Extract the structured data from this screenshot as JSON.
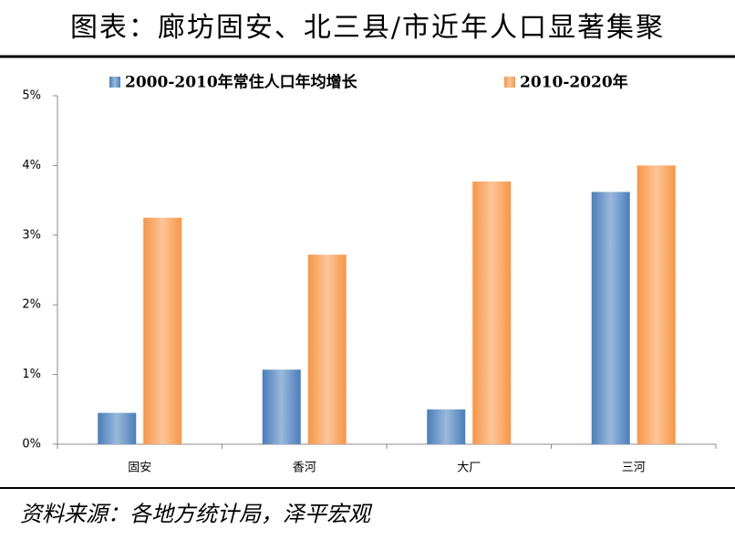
{
  "chart_data": {
    "type": "bar",
    "title": "图表：廊坊固安、北三县/市近年人口显著集聚",
    "source": "资料来源：各地方统计局，泽平宏观",
    "categories": [
      "固安",
      "香河",
      "大厂",
      "三河"
    ],
    "series": [
      {
        "name": "2000-2010年常住人口年均增长",
        "color": "#4a7ebb",
        "values": [
          0.45,
          1.07,
          0.5,
          3.62
        ]
      },
      {
        "name": "2010-2020年",
        "color": "#f79646",
        "values": [
          3.25,
          2.72,
          3.77,
          4.0
        ]
      }
    ],
    "ylim": [
      0,
      5
    ],
    "yticks": [
      {
        "value": 0,
        "label": "0%"
      },
      {
        "value": 1,
        "label": "1%"
      },
      {
        "value": 2,
        "label": "2%"
      },
      {
        "value": 3,
        "label": "3%"
      },
      {
        "value": 4,
        "label": "4%"
      },
      {
        "value": 5,
        "label": "5%"
      }
    ],
    "legend": "top"
  }
}
